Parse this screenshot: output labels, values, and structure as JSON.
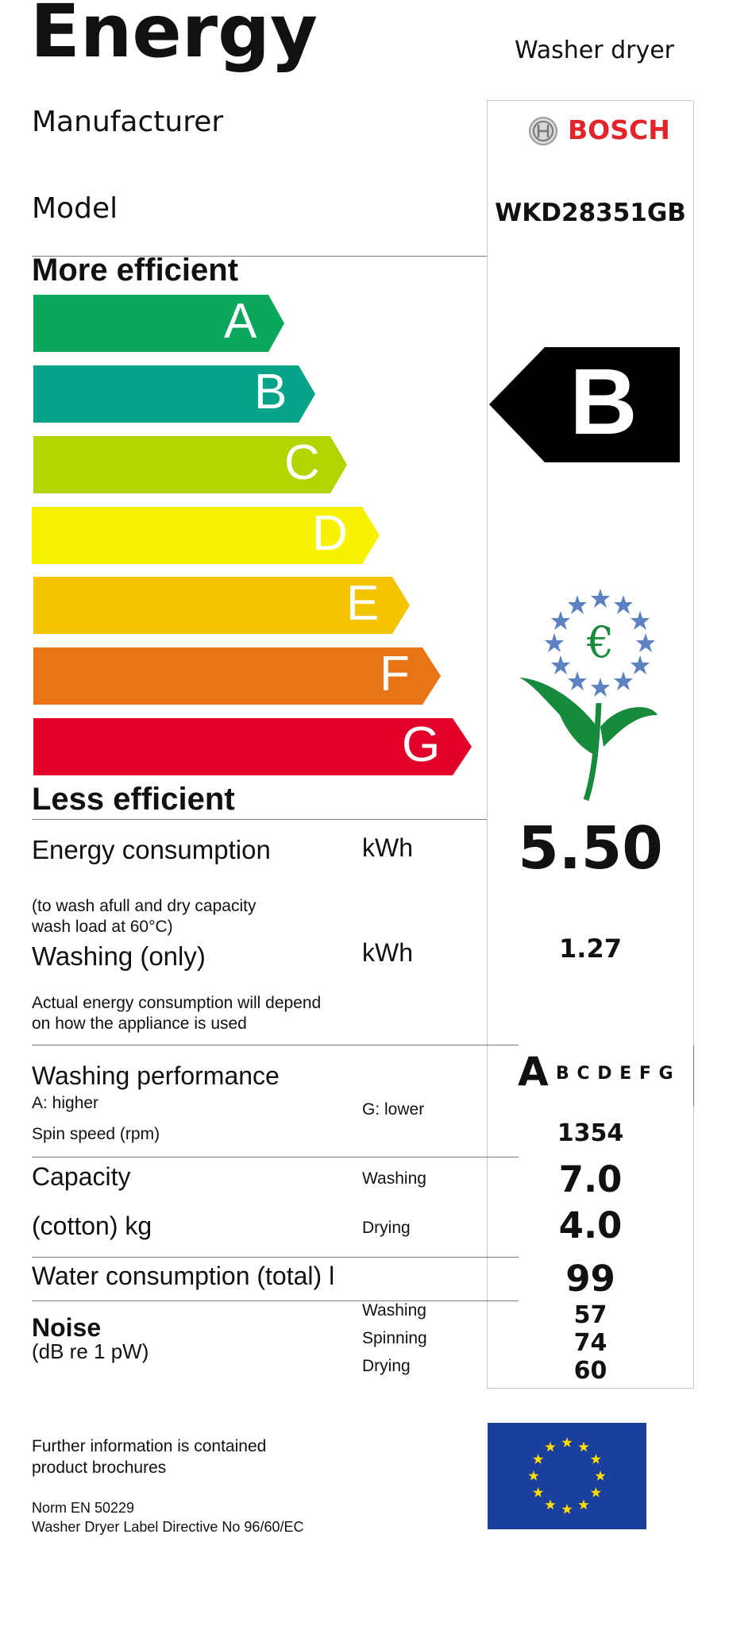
{
  "header": {
    "title": "Energy",
    "appliance": "Washer dryer"
  },
  "manufacturer": {
    "label": "Manufacturer",
    "brand": "BOSCH"
  },
  "model": {
    "label": "Model",
    "value": "WKD28351GB"
  },
  "scale": {
    "top_label": "More efficient",
    "bottom_label": "Less efficient",
    "classes": [
      {
        "letter": "A",
        "color": "#0aa75c"
      },
      {
        "letter": "B",
        "color": "#05a489"
      },
      {
        "letter": "C",
        "color": "#b3d400"
      },
      {
        "letter": "D",
        "color": "#f7f300"
      },
      {
        "letter": "E",
        "color": "#f5c400"
      },
      {
        "letter": "F",
        "color": "#e87415"
      },
      {
        "letter": "G",
        "color": "#e2002a"
      }
    ],
    "rating": "B"
  },
  "energy": {
    "label": "Energy consumption",
    "unit": "kWh",
    "value": "5.50",
    "note_line1": "(to wash afull and dry capacity",
    "note_line2": "wash load at 60°C)"
  },
  "washing_only": {
    "label": "Washing (only)",
    "unit": "kWh",
    "value": "1.27"
  },
  "actual_note": {
    "line1": "Actual energy consumption will depend",
    "line2": "on how the appliance is used"
  },
  "washing_performance": {
    "label": "Washing performance",
    "higher": "A: higher",
    "lower": "G: lower",
    "rating": "A",
    "others": "B C D E F G"
  },
  "spin": {
    "label": "Spin speed (rpm)",
    "value": "1354"
  },
  "capacity": {
    "label": "Capacity",
    "unit_label": "(cotton) kg",
    "washing_label": "Washing",
    "washing_value": "7.0",
    "drying_label": "Drying",
    "drying_value": "4.0"
  },
  "water": {
    "label": "Water consumption (total) l",
    "value": "99"
  },
  "noise": {
    "label": "Noise",
    "unit": "(dB re 1 pW)",
    "washing_label": "Washing",
    "washing_value": "57",
    "spinning_label": "Spinning",
    "spinning_value": "74",
    "drying_label": "Drying",
    "drying_value": "60"
  },
  "footer": {
    "info_line1": "Further information is contained",
    "info_line2": "product brochures",
    "norm": "Norm EN 50229",
    "directive": "Washer Dryer Label Directive No 96/60/EC"
  },
  "icons": {
    "eu_flower": "eu-ecolabel-flower-icon",
    "eu_flag": "eu-flag-icon",
    "bosch_logo": "bosch-logo-icon"
  },
  "colors": {
    "bosch_red": "#e2242b",
    "eu_blue": "#1b3f9c",
    "eu_star": "#ffdd00",
    "flower_blue": "#5d82c1",
    "flower_green": "#178a3c"
  }
}
